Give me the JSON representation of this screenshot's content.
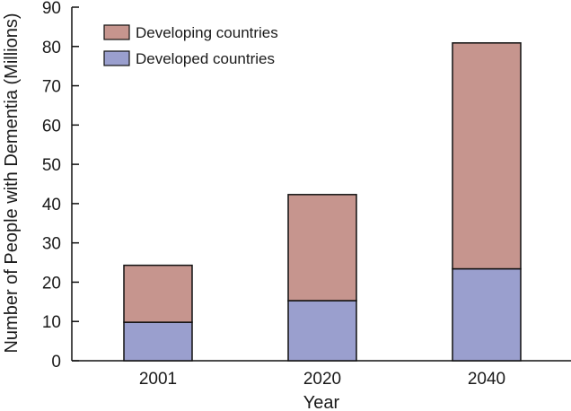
{
  "chart_data": {
    "type": "bar",
    "stacked": true,
    "categories": [
      "2001",
      "2020",
      "2040"
    ],
    "series": [
      {
        "name": "Developed countries",
        "color": "#9a9fce",
        "values": [
          9.8,
          15.3,
          23.4
        ]
      },
      {
        "name": "Developing countries",
        "color": "#c6958e",
        "values": [
          14.5,
          27.0,
          57.5
        ]
      }
    ],
    "legend": [
      "Developing countries",
      "Developed countries"
    ],
    "title": "",
    "xlabel": "Year",
    "ylabel": "Number of People with Dementia (Millions)",
    "ylim": [
      0,
      90
    ],
    "yticks": [
      0,
      10,
      20,
      30,
      40,
      50,
      60,
      70,
      80,
      90
    ],
    "legend_position": "top-left",
    "grid": false
  }
}
